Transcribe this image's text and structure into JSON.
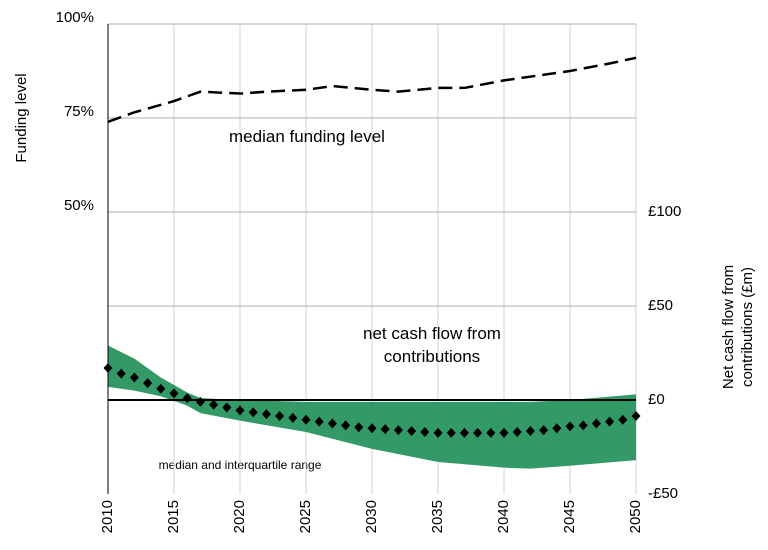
{
  "chart_data": {
    "type": "line",
    "y_label": "Funding level",
    "y2_label": "Net cash flow from contributions (£m)",
    "xlim": [
      2010,
      2050
    ],
    "xticks": [
      2010,
      2015,
      2020,
      2025,
      2030,
      2035,
      2040,
      2045,
      2050
    ],
    "ylim": [
      -25,
      100
    ],
    "yticks": [
      {
        "value": 50,
        "label": "50%"
      },
      {
        "value": 75,
        "label": "75%"
      },
      {
        "value": 100,
        "label": "100%"
      }
    ],
    "y2lim": [
      -50,
      200
    ],
    "y2ticks": [
      {
        "value": -50,
        "label": "-£50"
      },
      {
        "value": 0,
        "label": "£0"
      },
      {
        "value": 50,
        "label": "£50"
      },
      {
        "value": 100,
        "label": "£100"
      }
    ],
    "grid": true,
    "annotations": [
      "median funding level",
      "net cash flow from contributions",
      "median and interquartile range"
    ],
    "funding": {
      "color": "#000000",
      "x": [
        2010,
        2012,
        2015,
        2017,
        2020,
        2022,
        2025,
        2027,
        2030,
        2032,
        2035,
        2037,
        2040,
        2043,
        2045,
        2048,
        2050
      ],
      "values": [
        74,
        76.5,
        79.5,
        82,
        81.5,
        82,
        82.5,
        83.5,
        82.5,
        82,
        83,
        83,
        85,
        86.5,
        87.5,
        89.5,
        91
      ]
    },
    "band": {
      "axis": "y2",
      "color": "#339966",
      "x": [
        2010,
        2012,
        2014,
        2016,
        2017,
        2020,
        2025,
        2030,
        2035,
        2040,
        2042,
        2045,
        2050
      ],
      "upper": [
        29,
        22,
        12,
        4,
        1,
        0,
        -1,
        -1,
        -1,
        -1,
        -1,
        0,
        3
      ],
      "lower": [
        7,
        5,
        2,
        -3,
        -7,
        -11,
        -17,
        -26,
        -33,
        -36,
        -36.5,
        -35,
        -32
      ]
    },
    "median_cash": {
      "axis": "y2",
      "color": "#000000",
      "x": [
        2010,
        2011,
        2012,
        2013,
        2014,
        2015,
        2016,
        2017,
        2018,
        2019,
        2020,
        2021,
        2022,
        2023,
        2024,
        2025,
        2026,
        2027,
        2028,
        2029,
        2030,
        2031,
        2032,
        2033,
        2034,
        2035,
        2036,
        2037,
        2038,
        2039,
        2040,
        2041,
        2042,
        2043,
        2044,
        2045,
        2046,
        2047,
        2048,
        2049,
        2050
      ],
      "values": [
        17,
        14,
        12,
        9,
        6,
        3.5,
        1,
        -1,
        -2.5,
        -4,
        -5.5,
        -6.5,
        -7.5,
        -8.5,
        -9.5,
        -10.5,
        -11.5,
        -12.5,
        -13.5,
        -14.5,
        -15,
        -15.5,
        -16,
        -16.5,
        -17,
        -17.5,
        -17.5,
        -17.5,
        -17.5,
        -17.5,
        -17.5,
        -17,
        -16.5,
        -16,
        -15,
        -14,
        -13.5,
        -12.5,
        -11.5,
        -10.5,
        -8.5
      ]
    }
  }
}
